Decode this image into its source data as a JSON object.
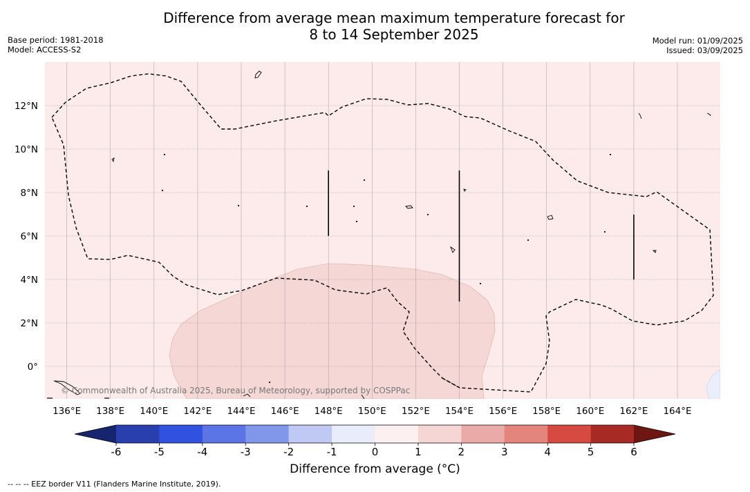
{
  "title_line1": "Difference from average mean maximum temperature forecast for",
  "title_line2": "8 to 14 September 2025",
  "base_period": "Base period: 1981-2018",
  "model": "Model: ACCESS-S2",
  "model_run": "Model run: 01/09/2025",
  "issued": "Issued: 03/09/2025",
  "copyright": "© Commonwealth of Australia 2025, Bureau of Meteorology, supported by COSPPac",
  "lon_labels": [
    "136°E",
    "138°E",
    "140°E",
    "142°E",
    "144°E",
    "146°E",
    "148°E",
    "150°E",
    "152°E",
    "154°E",
    "156°E",
    "158°E",
    "160°E",
    "162°E",
    "164°E"
  ],
  "lat_labels": [
    "12°N",
    "10°N",
    "8°N",
    "6°N",
    "4°N",
    "2°N",
    "0°"
  ],
  "colorbar": {
    "label": "Difference from average ($^\\circ$C)",
    "label_display": "Difference from average (°C)",
    "ticks": [
      "-6",
      "-5",
      "-4",
      "-3",
      "-2",
      "-1",
      "0",
      "1",
      "2",
      "3",
      "4",
      "5",
      "6"
    ],
    "colors": [
      "#2a3fae",
      "#3152e0",
      "#5b74e6",
      "#8197ea",
      "#c0c9f3",
      "#e9ecfb",
      "#fdf0f0",
      "#f5d6d4",
      "#eaaba8",
      "#e3847d",
      "#d74a42",
      "#a82a24"
    ],
    "low_extend_color": "#17256e",
    "high_extend_color": "#6e1712"
  },
  "footnote": "--  --  -- EEZ border V11 (Flanders Marine Institute, 2019).",
  "colors": {
    "background_field": "#fcebea",
    "warm_anomaly": "#f5d8d5",
    "cool_anomaly": "#ebeefb"
  }
}
